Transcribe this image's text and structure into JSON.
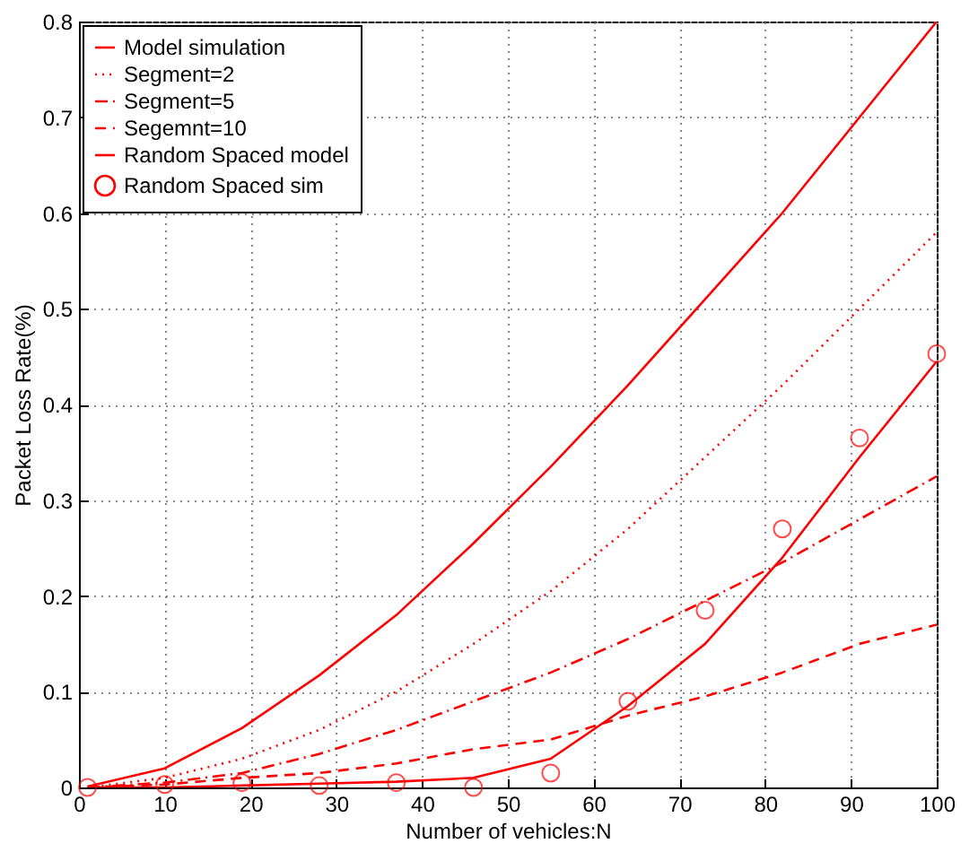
{
  "chart_data": {
    "type": "line",
    "xlabel": "Number of vehicles:N",
    "ylabel": "Packet Loss Rate(%)",
    "x": [
      1,
      10,
      19,
      28,
      37,
      46,
      55,
      64,
      73,
      82,
      91,
      100
    ],
    "xlim": [
      0,
      100
    ],
    "xticks": [
      0,
      10,
      20,
      30,
      40,
      50,
      60,
      70,
      80,
      90,
      100
    ],
    "ylim": [
      0,
      0.8
    ],
    "yticks": [
      0,
      0.1,
      0.2,
      0.3,
      0.4,
      0.5,
      0.6,
      0.7,
      0.8
    ],
    "grid": true,
    "legend": "top left",
    "marker": "none",
    "series": [
      {
        "name": "Model simulation",
        "color": "#ff0000",
        "line_style": "solid",
        "values": [
          0.001,
          0.02,
          0.062,
          0.117,
          0.18,
          0.255,
          0.335,
          0.42,
          0.51,
          0.6,
          0.7,
          0.8
        ]
      },
      {
        "name": "Segment=2",
        "color": "#ff0000",
        "line_style": "dotted",
        "values": [
          0,
          0.01,
          0.03,
          0.06,
          0.1,
          0.15,
          0.205,
          0.27,
          0.345,
          0.42,
          0.5,
          0.58
        ]
      },
      {
        "name": "Segment=5",
        "color": "#ff0000",
        "line_style": "dashdot",
        "values": [
          0,
          0.005,
          0.015,
          0.035,
          0.06,
          0.09,
          0.12,
          0.155,
          0.195,
          0.235,
          0.28,
          0.325
        ]
      },
      {
        "name": "Segemnt=10",
        "color": "#ff0000",
        "line_style": "dashed",
        "values": [
          0,
          0.003,
          0.01,
          0.015,
          0.025,
          0.04,
          0.05,
          0.075,
          0.095,
          0.12,
          0.15,
          0.17
        ]
      },
      {
        "name": "Random Spaced model",
        "color": "#ff0000",
        "line_style": "solid",
        "values": [
          0,
          0,
          0.002,
          0.004,
          0.006,
          0.01,
          0.03,
          0.085,
          0.15,
          0.24,
          0.345,
          0.445
        ]
      },
      {
        "name": "Random Spaced sim",
        "color": "#ff0000",
        "type": "scatter",
        "marker": "circle",
        "values": [
          0,
          0.003,
          0.005,
          0.002,
          0.005,
          0,
          0.015,
          0.09,
          0.185,
          0.27,
          0.365,
          0.453
        ]
      }
    ]
  }
}
